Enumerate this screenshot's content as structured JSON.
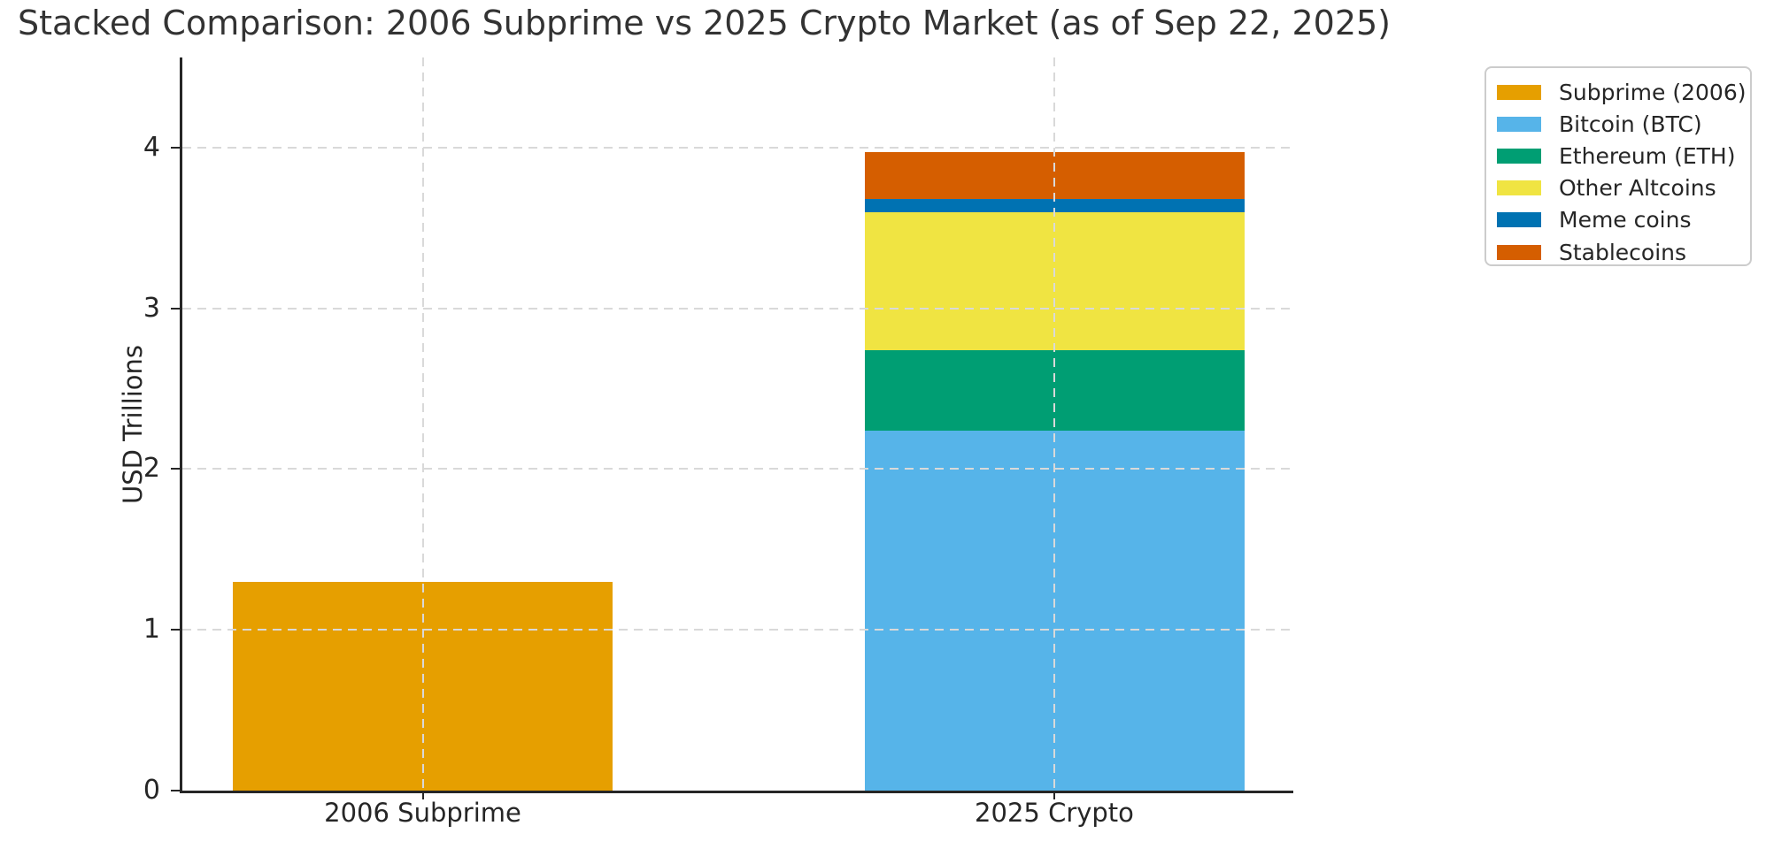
{
  "title": "Stacked Comparison: 2006 Subprime vs 2025 Crypto Market (as of Sep 22, 2025)",
  "chart_data": {
    "type": "bar",
    "stacked": true,
    "title": "Stacked Comparison: 2006 Subprime vs 2025 Crypto Market (as of Sep 22, 2025)",
    "xlabel": "",
    "ylabel": "USD Trillions",
    "categories": [
      "2006 Subprime",
      "2025 Crypto"
    ],
    "series": [
      {
        "name": "Subprime (2006)",
        "color": "#E69F00",
        "values": [
          1.3,
          0
        ]
      },
      {
        "name": "Bitcoin (BTC)",
        "color": "#56B4E9",
        "values": [
          0,
          2.24
        ]
      },
      {
        "name": "Ethereum (ETH)",
        "color": "#009E73",
        "values": [
          0,
          0.5
        ]
      },
      {
        "name": "Other Altcoins",
        "color": "#F0E442",
        "values": [
          0,
          0.86
        ]
      },
      {
        "name": "Meme coins",
        "color": "#0072B2",
        "values": [
          0,
          0.08
        ]
      },
      {
        "name": "Stablecoins",
        "color": "#D55E00",
        "values": [
          0,
          0.29
        ]
      }
    ],
    "totals": {
      "2006 Subprime": 1.3,
      "2025 Crypto": 3.97
    },
    "yticks": [
      0,
      1,
      2,
      3,
      4
    ],
    "ylim": [
      0,
      4.56
    ],
    "grid": true,
    "grid_style": "dashed",
    "legend_position": "upper right",
    "axis_color": "#262626",
    "grid_color": "#d9d9d9",
    "background_color": "#ffffff"
  }
}
